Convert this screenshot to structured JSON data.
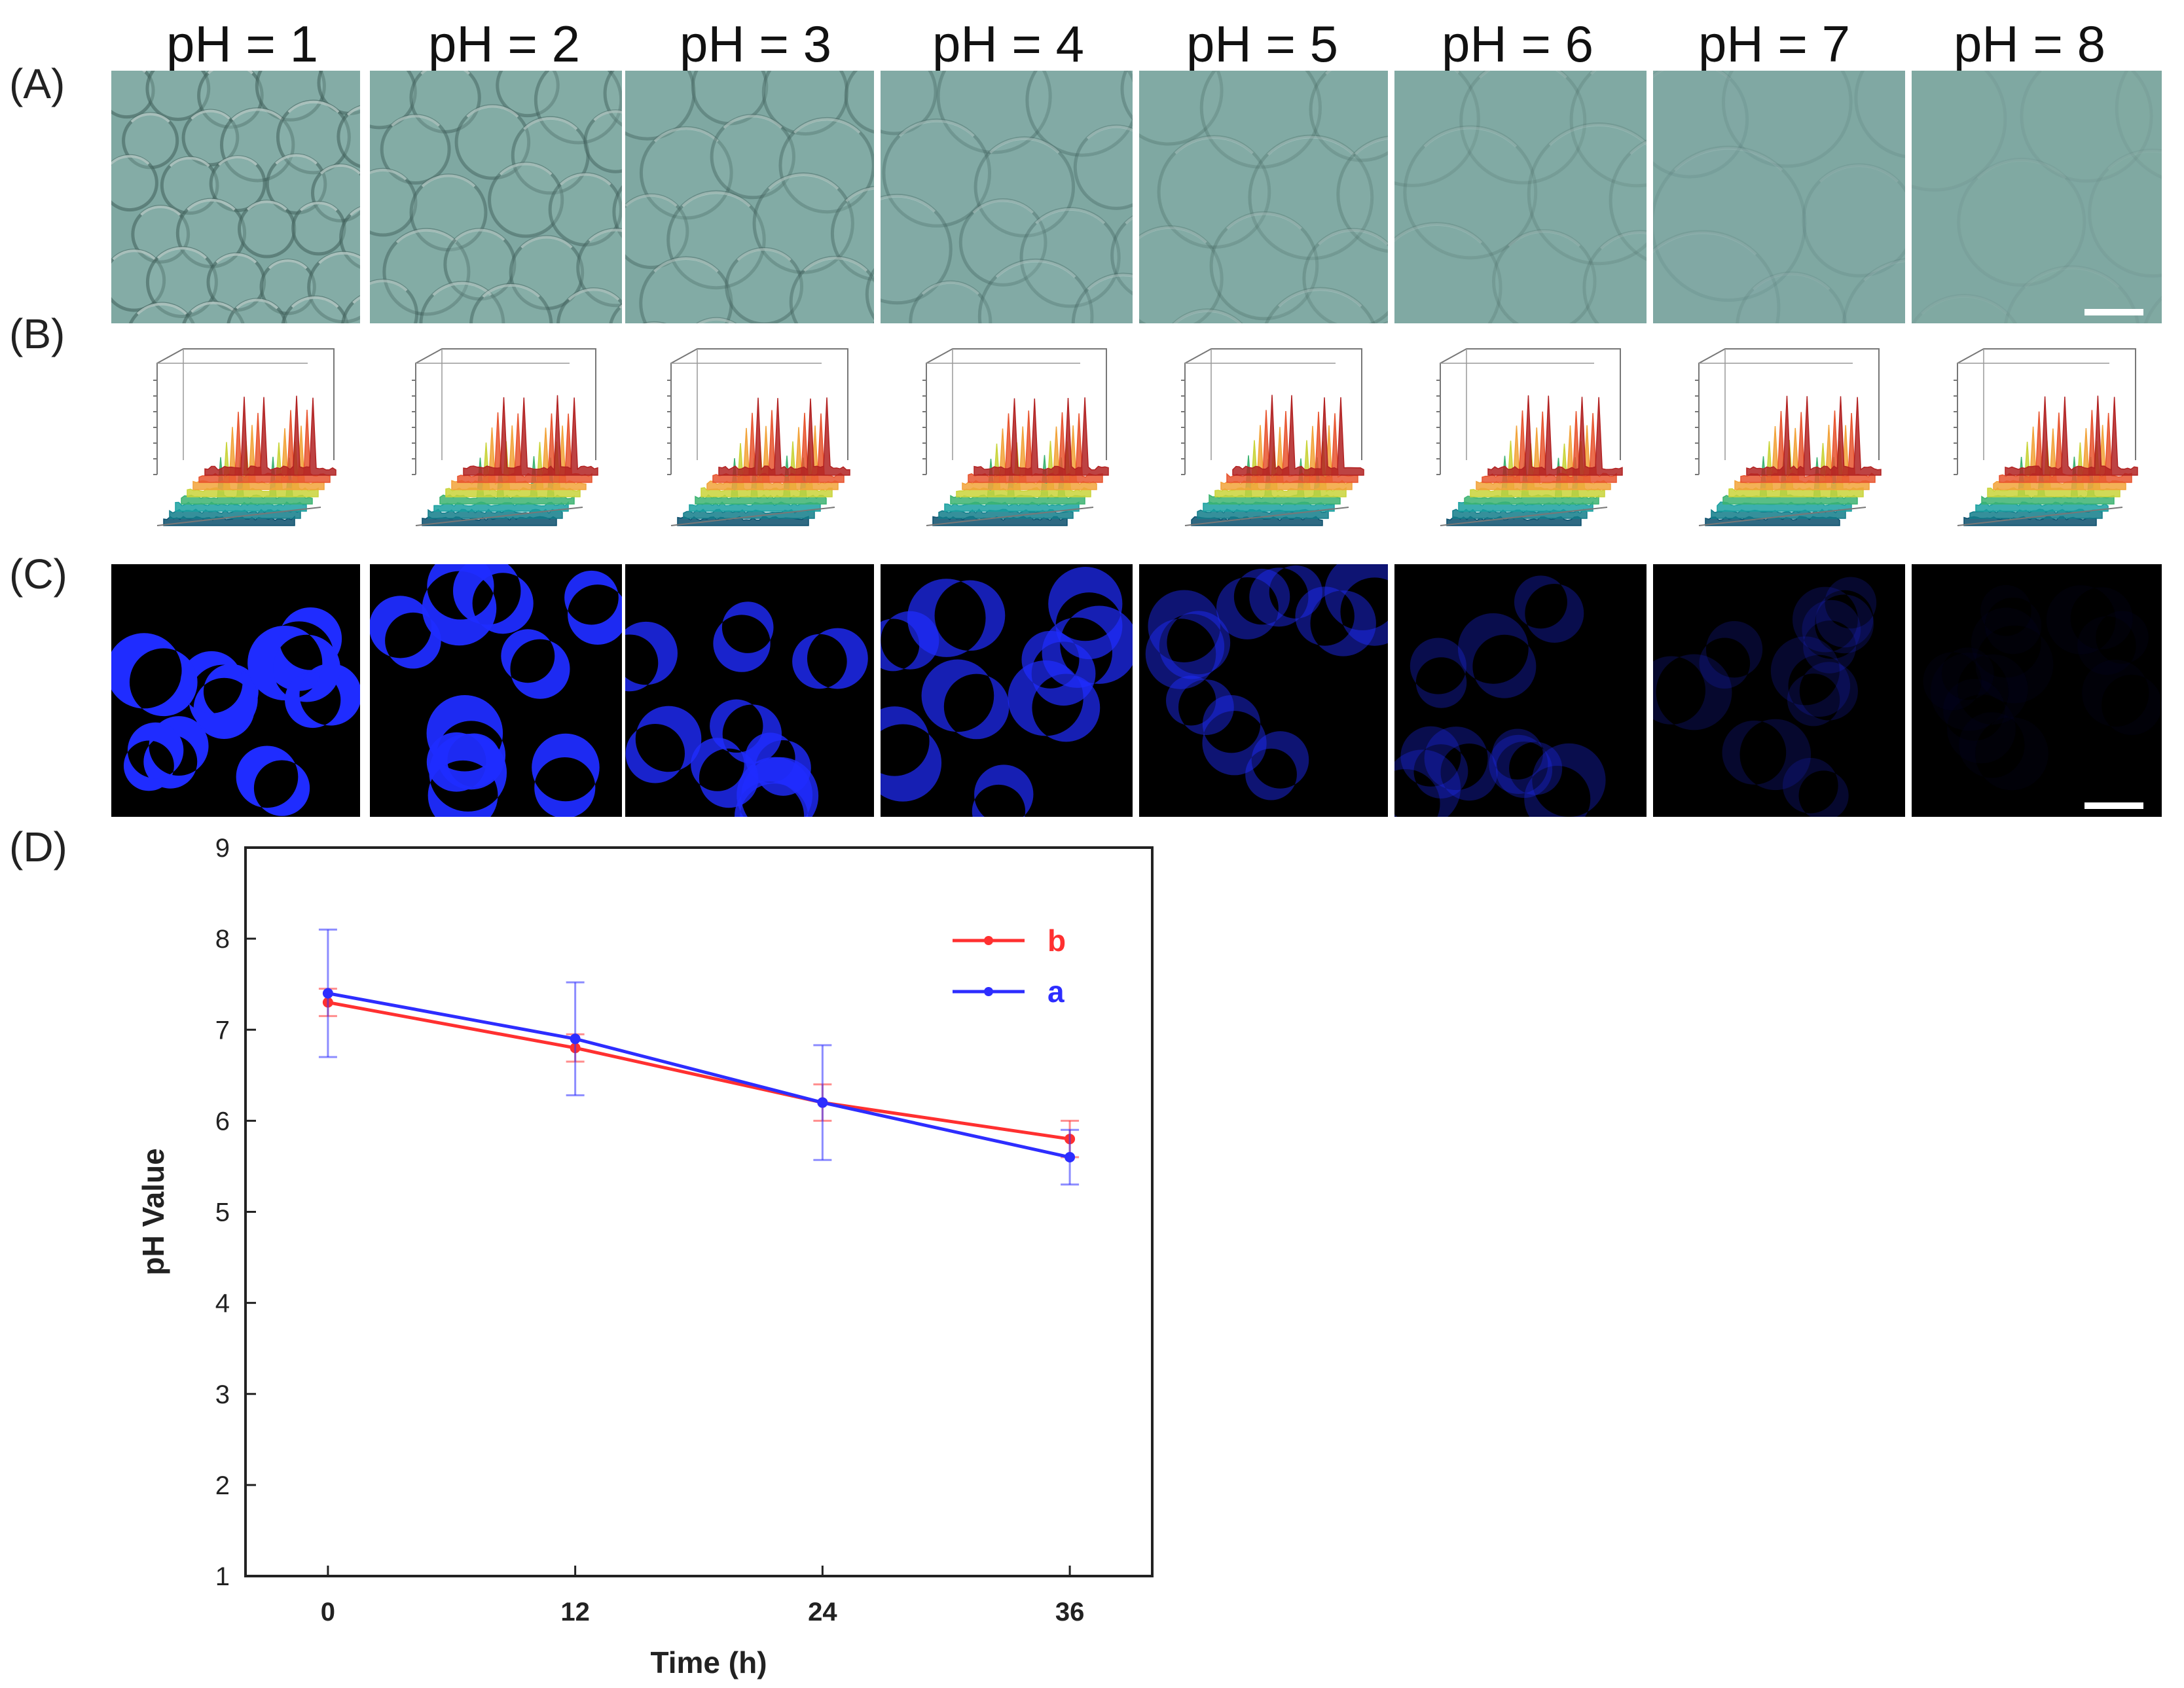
{
  "panels": {
    "a": "(A)",
    "b": "(B)",
    "c": "(C)",
    "d": "(D)"
  },
  "ph_labels": [
    "pH = 1",
    "pH = 2",
    "pH = 3",
    "pH = 4",
    "pH = 5",
    "pH = 6",
    "pH = 7",
    "pH = 8"
  ],
  "colors": {
    "brightfield_bg": "#7fa8a2",
    "fluorescence": "#1f2cff",
    "series_b": "#ff3030",
    "series_a": "#2d2dff"
  },
  "fluorescence_intensity": [
    1.0,
    0.95,
    0.8,
    0.7,
    0.45,
    0.3,
    0.18,
    0.03
  ],
  "chart_data": {
    "type": "line",
    "title": "",
    "xlabel": "Time (h)",
    "ylabel": "pH Value",
    "x": [
      0,
      12,
      24,
      36
    ],
    "xticks": [
      "0",
      "12",
      "24",
      "36"
    ],
    "yticks": [
      "1",
      "2",
      "3",
      "4",
      "5",
      "6",
      "7",
      "8",
      "9"
    ],
    "xlim": [
      -4,
      40
    ],
    "ylim": [
      1,
      9
    ],
    "legend_position": "top-right",
    "series": [
      {
        "name": "b",
        "color": "#ff3030",
        "values": [
          7.3,
          6.8,
          6.2,
          5.8
        ],
        "errors": [
          0.15,
          0.15,
          0.2,
          0.2
        ]
      },
      {
        "name": "a",
        "color": "#2d2dff",
        "values": [
          7.4,
          6.9,
          6.2,
          5.6
        ],
        "errors": [
          0.7,
          0.62,
          0.63,
          0.3
        ]
      }
    ]
  }
}
